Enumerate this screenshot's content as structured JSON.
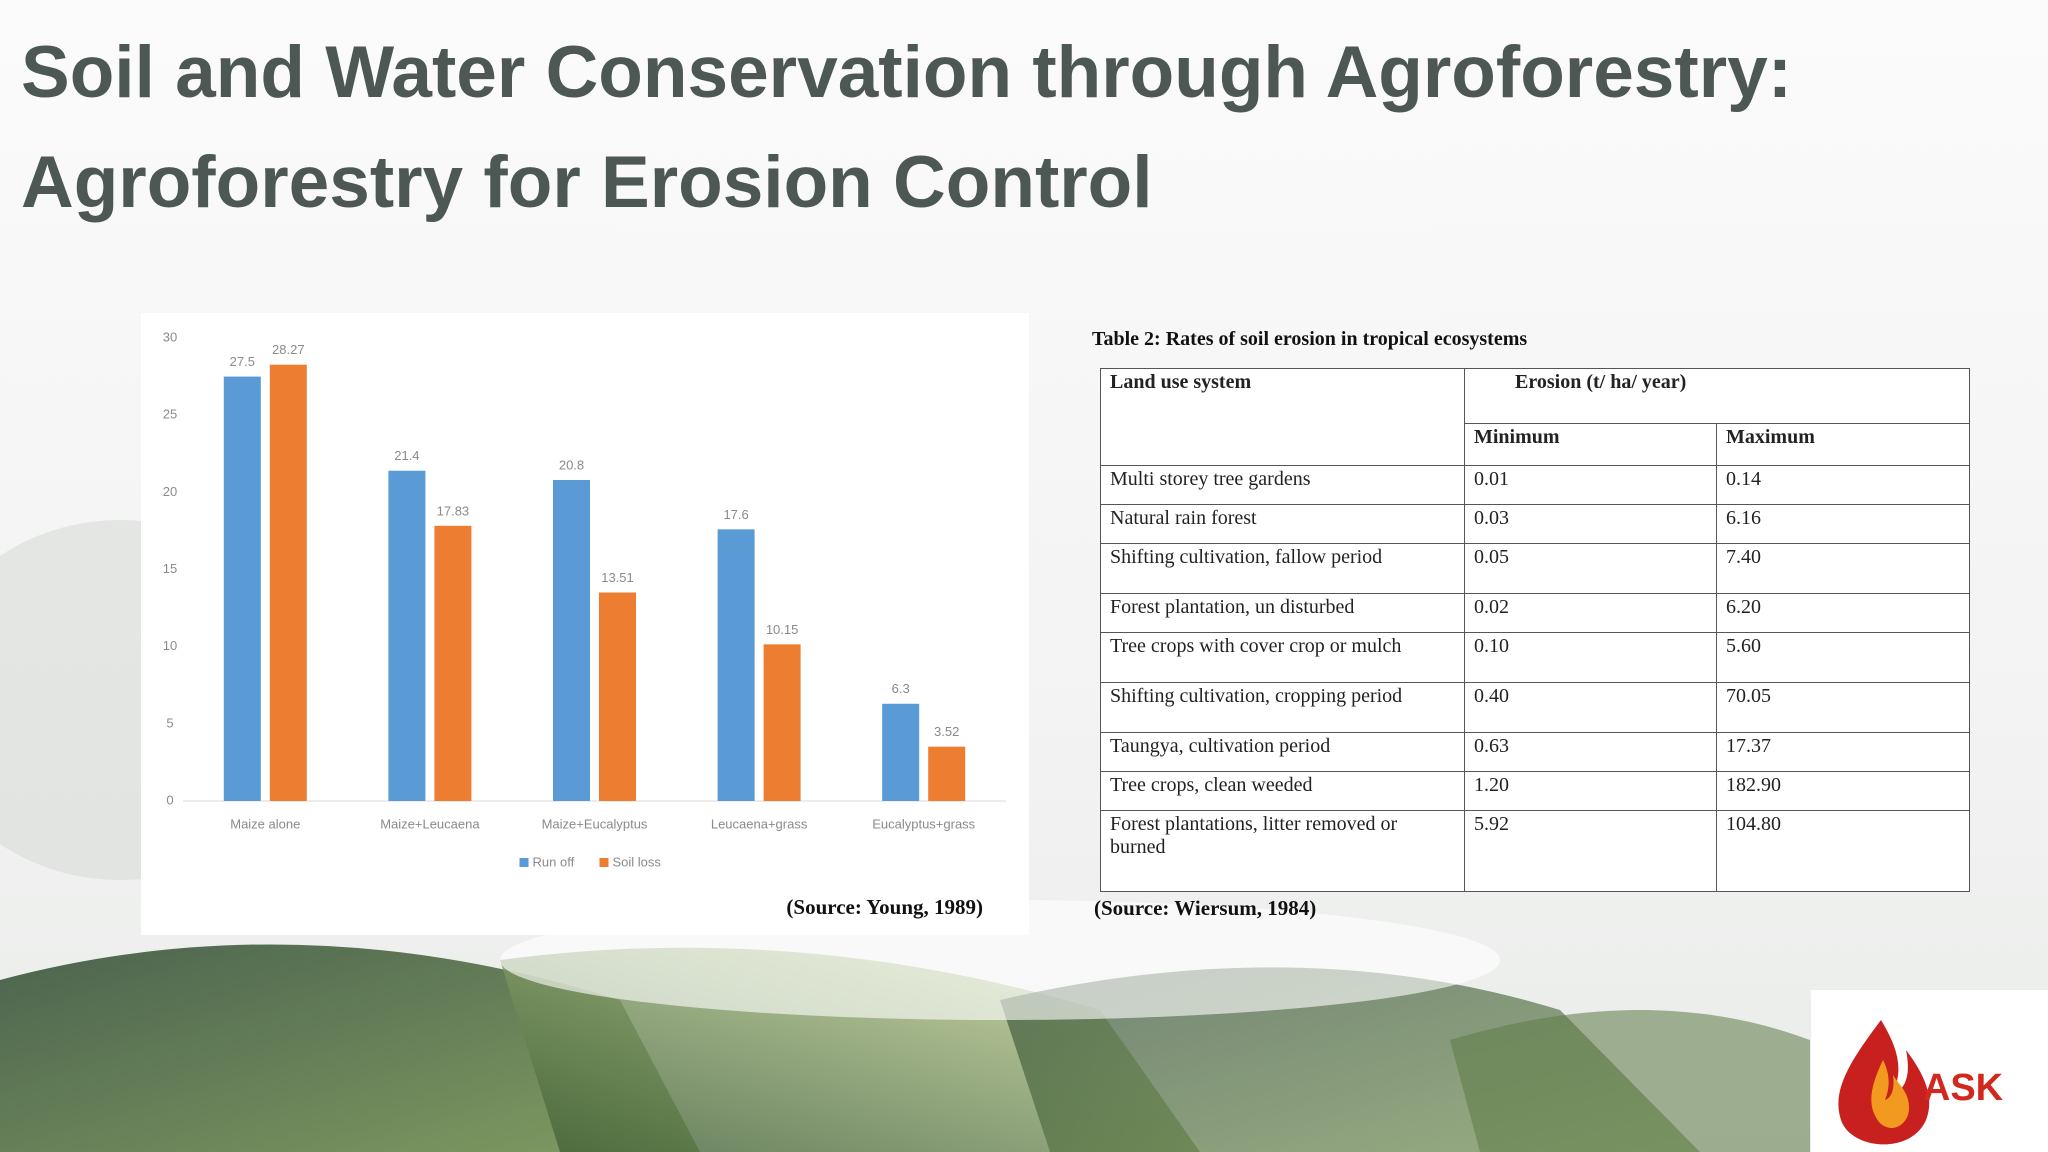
{
  "title": [
    "Soil and Water Conservation through Agroforestry:",
    "Agroforestry for Erosion Control"
  ],
  "chart_data": {
    "type": "bar",
    "categories": [
      "Maize alone",
      "Maize+Leucaena",
      "Maize+Eucalyptus",
      "Leucaena+grass",
      "Eucalyptus+grass"
    ],
    "series": [
      {
        "name": "Run off",
        "color": "#5b9bd5",
        "values": [
          27.5,
          21.4,
          20.8,
          17.6,
          6.3
        ]
      },
      {
        "name": "Soil loss",
        "color": "#ed7d31",
        "values": [
          28.27,
          17.83,
          13.51,
          10.15,
          3.52
        ]
      }
    ],
    "ylim": [
      0,
      30
    ],
    "yticks": [
      0,
      5,
      10,
      15,
      20,
      25,
      30
    ],
    "grid": false,
    "legend": "bottom",
    "source": "(Source: Young, 1989)"
  },
  "table": {
    "title": "Table 2: Rates of soil erosion in tropical ecosystems",
    "header": {
      "land_use": "Land use system",
      "erosion": "Erosion (t/ ha/ year)",
      "min": "Minimum",
      "max": "Maximum"
    },
    "rows": [
      [
        "Multi storey tree gardens",
        "0.01",
        "0.14"
      ],
      [
        "Natural rain forest",
        "0.03",
        "6.16"
      ],
      [
        "Shifting cultivation, fallow period",
        "0.05",
        "7.40"
      ],
      [
        "Forest plantation, un disturbed",
        "0.02",
        "6.20"
      ],
      [
        "Tree crops with cover crop or mulch",
        "0.10",
        "5.60"
      ],
      [
        "Shifting cultivation, cropping period",
        "0.40",
        "70.05"
      ],
      [
        "Taungya, cultivation period",
        "0.63",
        "17.37"
      ],
      [
        "Tree crops, clean weeded",
        "1.20",
        "182.90"
      ],
      [
        "Forest plantations, litter removed or burned",
        "5.92",
        "104.80"
      ]
    ],
    "source": "(Source: Wiersum, 1984)"
  },
  "logo": "ASK"
}
